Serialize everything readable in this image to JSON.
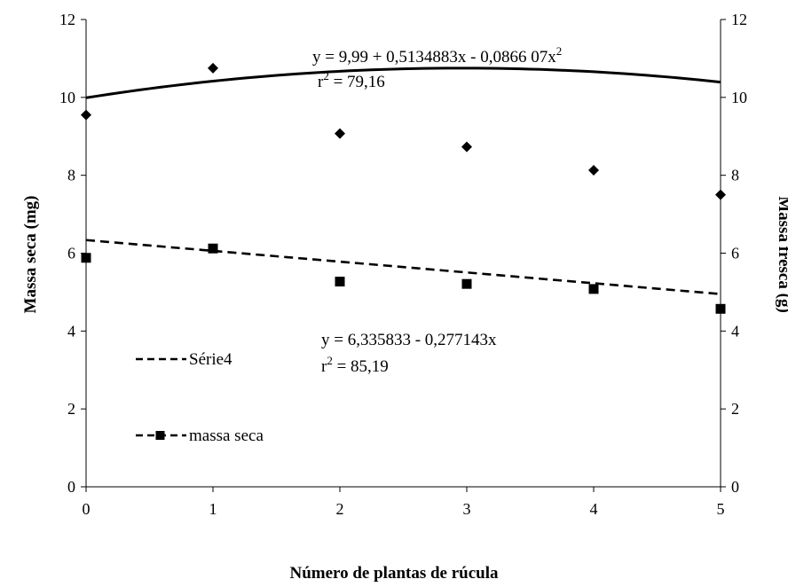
{
  "chart_data": {
    "type": "scatter",
    "xlabel": "Número de plantas de rúcula",
    "ylabel_left": "Massa seca (mg)",
    "ylabel_right": "Massa fresca (g)",
    "xlim": [
      0,
      5
    ],
    "ylim": [
      0,
      12
    ],
    "x_ticks": [
      "0",
      "1",
      "2",
      "3",
      "4",
      "5"
    ],
    "y_ticks": [
      "0",
      "2",
      "4",
      "6",
      "8",
      "10",
      "12"
    ],
    "grid": false,
    "legend_position": "left-bottom",
    "series": [
      {
        "name": "massa fresca",
        "axis": "right",
        "marker": "diamond",
        "x": [
          0,
          1,
          2,
          3,
          4,
          5
        ],
        "values": [
          9.55,
          10.75,
          9.07,
          8.73,
          8.13,
          7.5
        ],
        "trend": {
          "type": "polynomial",
          "coefficients": [
            9.99,
            0.5134883,
            -0.086607
          ],
          "style": "solid"
        }
      },
      {
        "name": "massa seca",
        "axis": "left",
        "marker": "square",
        "x": [
          0,
          1,
          2,
          3,
          4,
          5
        ],
        "values": [
          5.88,
          6.12,
          5.27,
          5.21,
          5.08,
          4.57
        ],
        "trend": {
          "type": "linear",
          "coefficients": [
            6.335833,
            -0.277143
          ],
          "style": "dashed"
        }
      }
    ],
    "legend": [
      {
        "label": "Série4",
        "style": "dashed-line"
      },
      {
        "label": "massa seca",
        "style": "dashed-line-square"
      }
    ],
    "annotations": {
      "eq_top_line1_base": "y =  9,99 + 0,5134883x - 0,0866 07x",
      "eq_top_line1_sup": "2",
      "eq_top_line2_base": "r",
      "eq_top_line2_sup": "2",
      "eq_top_line2_rest": " = 79,16",
      "eq_bottom_line1": "y =  6,335833 - 0,277143x",
      "eq_bottom_line2_base": "r",
      "eq_bottom_line2_sup": "2",
      "eq_bottom_line2_rest": " = 85,19"
    },
    "colors": {
      "ink": "#000000",
      "background": "#ffffff"
    }
  }
}
